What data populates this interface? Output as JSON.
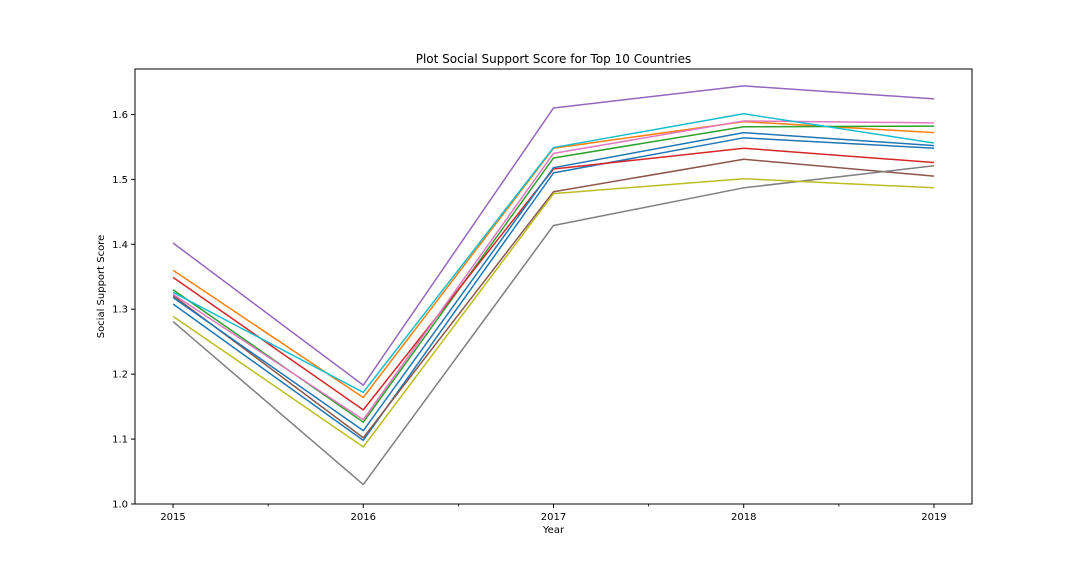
{
  "chart_data": {
    "type": "line",
    "title": "Plot Social Support Score for Top 10 Countries",
    "xlabel": "Year",
    "ylabel": "Social Support Score",
    "x": [
      "2015",
      "2016",
      "2017",
      "2018",
      "2019"
    ],
    "x_numeric": [
      2015,
      2016,
      2017,
      2018,
      2019
    ],
    "xlim": [
      2014.8,
      2019.2
    ],
    "ylim": [
      1.0,
      1.67
    ],
    "yticks": [
      1.0,
      1.1,
      1.2,
      1.3,
      1.4,
      1.5,
      1.6
    ],
    "ytick_labels": [
      "1.0",
      "1.1",
      "1.2",
      "1.3",
      "1.4",
      "1.5",
      "1.6"
    ],
    "xtick_labels": [
      "2015",
      "2016",
      "2017",
      "2018",
      "2019"
    ],
    "minor_xticks": [
      2015.5,
      2016.5,
      2017.5,
      2018.5
    ],
    "grid": false,
    "series": [
      {
        "color": "#1f77b4",
        "values": [
          1.308,
          1.098,
          1.51,
          1.564,
          1.548
        ]
      },
      {
        "color": "#ff7f0e",
        "values": [
          1.36,
          1.164,
          1.548,
          1.589,
          1.572
        ]
      },
      {
        "color": "#2ca02c",
        "values": [
          1.33,
          1.126,
          1.533,
          1.581,
          1.582
        ]
      },
      {
        "color": "#d62728",
        "values": [
          1.349,
          1.145,
          1.516,
          1.548,
          1.526
        ]
      },
      {
        "color": "#9467bd",
        "values": [
          1.402,
          1.183,
          1.61,
          1.644,
          1.624
        ]
      },
      {
        "color": "#8c564b",
        "values": [
          1.321,
          1.102,
          1.481,
          1.531,
          1.505
        ]
      },
      {
        "color": "#e377c2",
        "values": [
          1.323,
          1.13,
          1.54,
          1.59,
          1.587
        ]
      },
      {
        "color": "#7f7f7f",
        "values": [
          1.281,
          1.03,
          1.429,
          1.487,
          1.521
        ]
      },
      {
        "color": "#bcbd22",
        "values": [
          1.289,
          1.088,
          1.478,
          1.501,
          1.487
        ]
      },
      {
        "color": "#17becf",
        "values": [
          1.326,
          1.172,
          1.549,
          1.601,
          1.556
        ]
      },
      {
        "color": "#1f77b4",
        "values": [
          1.318,
          1.113,
          1.518,
          1.572,
          1.552
        ]
      }
    ]
  }
}
